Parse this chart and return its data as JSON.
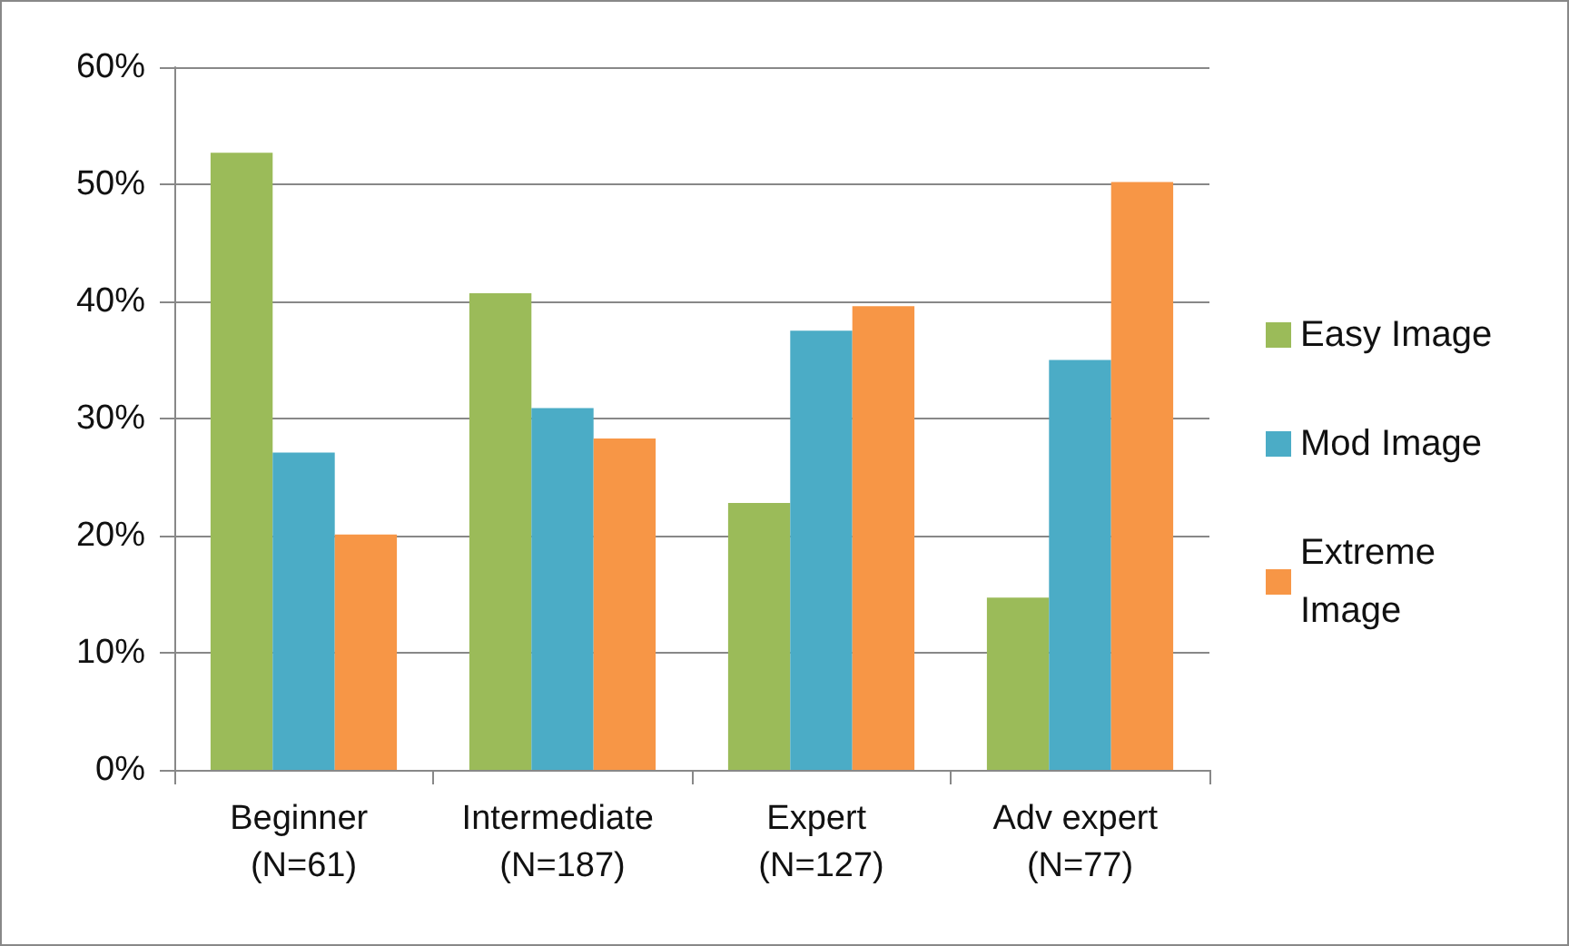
{
  "chart_data": {
    "type": "bar",
    "categories": [
      "Beginner (N=61)",
      "Intermediate (N=187)",
      "Expert (N=127)",
      "Adv expert (N=77)"
    ],
    "series": [
      {
        "name": "Easy Image",
        "color": "#9bbb59",
        "values": [
          52.7,
          40.7,
          22.8,
          14.7
        ]
      },
      {
        "name": "Mod Image",
        "color": "#4bacc6",
        "values": [
          27.1,
          30.9,
          37.5,
          35.0
        ]
      },
      {
        "name": "Extreme Image",
        "color": "#f79646",
        "values": [
          20.1,
          28.3,
          39.6,
          50.2
        ]
      }
    ],
    "ylim": [
      0,
      60
    ],
    "yticks": [
      {
        "value": 0,
        "label": "0%"
      },
      {
        "value": 10,
        "label": "10%"
      },
      {
        "value": 20,
        "label": "20%"
      },
      {
        "value": 30,
        "label": "30%"
      },
      {
        "value": 40,
        "label": "40%"
      },
      {
        "value": 50,
        "label": "50%"
      },
      {
        "value": 60,
        "label": "60%"
      }
    ],
    "grid": "y",
    "legend": "right"
  }
}
